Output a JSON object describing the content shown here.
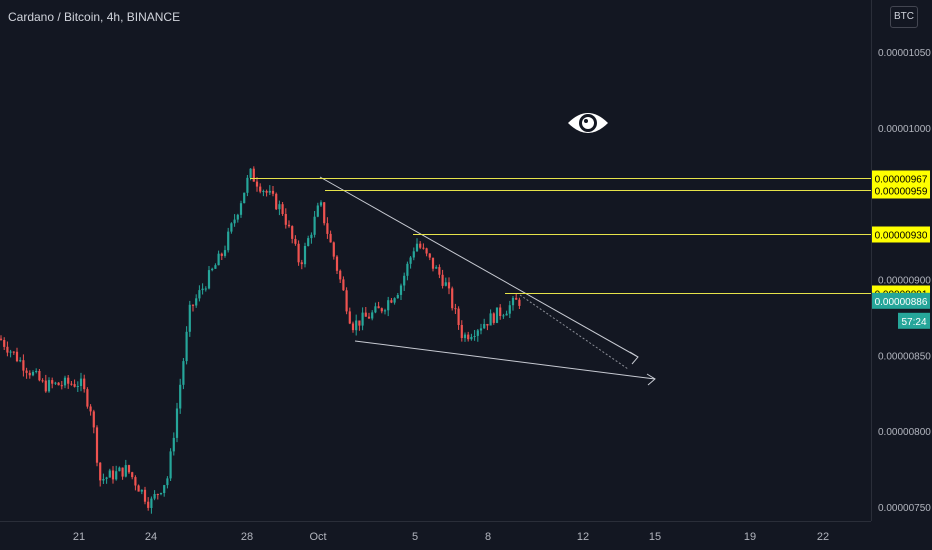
{
  "header": {
    "title": "Cardano / Bitcoin, 4h, BINANCE",
    "currency_button": "BTC"
  },
  "colors": {
    "background": "#131722",
    "up": "#26a69a",
    "down": "#ef5350",
    "level_line": "#e6e34a",
    "level_label_bg": "#ffff00",
    "price_label_bg": "#26a69a",
    "trendline": "#c8cbd3",
    "grid": "#1e222d"
  },
  "icons": [
    "eye-icon"
  ],
  "price_axis": {
    "ticks": [
      "0.00001050",
      "0.00001000",
      "0.00000900",
      "0.00000850",
      "0.00000800",
      "0.00000750"
    ],
    "last_price": "0.00000886",
    "countdown": "57:24"
  },
  "levels": [
    {
      "name": "level-0-00000967",
      "label": "0.00000967",
      "price": 9.67e-06
    },
    {
      "name": "level-0-00000959",
      "label": "0.00000959",
      "price": 9.59e-06
    },
    {
      "name": "level-0-00000930",
      "label": "0.00000930",
      "price": 9.3e-06
    },
    {
      "name": "level-0-00000891",
      "label": "0.00000891",
      "price": 8.91e-06
    }
  ],
  "time_axis": {
    "ticks": [
      "21",
      "24",
      "28",
      "Oct",
      "5",
      "8",
      "12",
      "15",
      "19",
      "22"
    ]
  },
  "chart_data": {
    "type": "candlestick",
    "title": "Cardano / Bitcoin, 4h, BINANCE",
    "y_range": [
      7.45e-06,
      1.072e-05
    ],
    "x_range": [
      "Sep 18",
      "Oct 23"
    ],
    "grid": false,
    "series": [
      {
        "date": "Sep 18",
        "close": 8.61e-06
      },
      {
        "date": "Sep 19",
        "close": 8.45e-06
      },
      {
        "date": "Sep 20",
        "close": 8.3e-06
      },
      {
        "date": "Sep 21",
        "close": 8.32e-06
      },
      {
        "date": "Sep 22",
        "close": 8.15e-06
      },
      {
        "date": "Sep 22.5",
        "close": 7.68e-06
      },
      {
        "date": "Sep 23",
        "close": 7.75e-06
      },
      {
        "date": "Sep 24",
        "close": 7.52e-06
      },
      {
        "date": "Sep 25",
        "close": 7.7e-06
      },
      {
        "date": "Sep 26",
        "close": 8.8e-06
      },
      {
        "date": "Sep 27",
        "close": 9.18e-06
      },
      {
        "date": "Sep 28",
        "close": 9.7e-06
      },
      {
        "date": "Sep 29",
        "close": 9.45e-06
      },
      {
        "date": "Sep 30",
        "close": 9.1e-06
      },
      {
        "date": "Oct 1",
        "close": 9.5e-06
      },
      {
        "date": "Oct 2",
        "close": 8.7e-06
      },
      {
        "date": "Oct 3",
        "close": 8.8e-06
      },
      {
        "date": "Oct 4",
        "close": 8.95e-06
      },
      {
        "date": "Oct 5",
        "close": 9.25e-06
      },
      {
        "date": "Oct 6",
        "close": 8.98e-06
      },
      {
        "date": "Oct 7",
        "close": 8.62e-06
      },
      {
        "date": "Oct 8",
        "close": 8.72e-06
      },
      {
        "date": "Oct 9",
        "close": 8.86e-06
      }
    ]
  }
}
